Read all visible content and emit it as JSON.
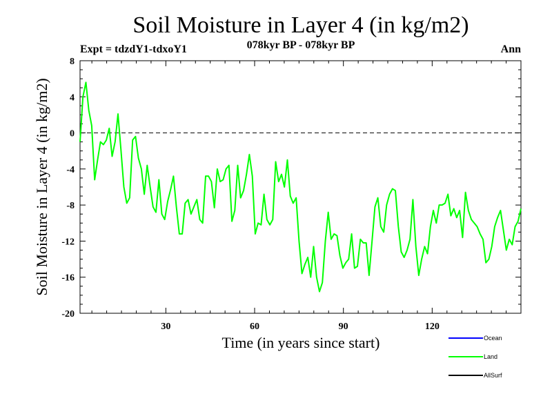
{
  "chart_data": {
    "type": "line",
    "title": "Soil Moisture in Layer 4 (in kg/m2)",
    "subtitle": "078kyr BP - 078kyr BP",
    "experiment": "Expt = tdzdY1-tdxoY1",
    "season": "Ann",
    "xlabel": "Time (in years since start)",
    "ylabel": "Soil Moisture in Layer 4 (in kg/m2)",
    "xlim": [
      1,
      150
    ],
    "ylim": [
      -20,
      8
    ],
    "xticks": [
      30,
      60,
      90,
      120
    ],
    "yticks": [
      8,
      4,
      0,
      -4,
      -8,
      -12,
      -16,
      -20
    ],
    "zero_line": 0,
    "legend": [
      {
        "label": "Ocean",
        "color": "#0000ff"
      },
      {
        "label": "Land",
        "color": "#00ff00"
      },
      {
        "label": "AllSurf",
        "color": "#000000"
      }
    ],
    "series": [
      {
        "name": "Land",
        "color": "#00ff00",
        "values": [
          -1.0,
          4.0,
          5.6,
          2.5,
          0.8,
          -5.2,
          -3.0,
          -1.0,
          -1.3,
          -0.8,
          0.5,
          -2.6,
          -1.0,
          2.1,
          -1.8,
          -6.0,
          -7.8,
          -7.2,
          -0.8,
          -0.4,
          -2.8,
          -4.0,
          -6.8,
          -3.6,
          -6.0,
          -8.2,
          -8.8,
          -5.2,
          -9.0,
          -9.6,
          -7.6,
          -6.3,
          -4.8,
          -8.2,
          -11.2,
          -11.2,
          -7.8,
          -7.4,
          -9.0,
          -8.2,
          -7.4,
          -9.6,
          -10.0,
          -4.8,
          -4.8,
          -5.4,
          -8.3,
          -4.0,
          -5.4,
          -5.2,
          -4.0,
          -3.6,
          -9.8,
          -8.6,
          -3.6,
          -7.2,
          -6.4,
          -4.6,
          -2.4,
          -4.8,
          -11.2,
          -10.0,
          -10.2,
          -6.8,
          -9.6,
          -10.2,
          -9.6,
          -3.2,
          -5.4,
          -4.6,
          -6.0,
          -3.0,
          -7.0,
          -7.8,
          -7.2,
          -12.0,
          -15.6,
          -14.6,
          -13.8,
          -16.0,
          -12.6,
          -16.0,
          -17.6,
          -16.6,
          -12.0,
          -8.8,
          -11.8,
          -11.2,
          -11.4,
          -13.6,
          -15.0,
          -14.4,
          -14.0,
          -11.2,
          -15.0,
          -14.8,
          -11.8,
          -12.2,
          -12.2,
          -15.8,
          -12.0,
          -8.2,
          -7.2,
          -10.4,
          -11.0,
          -8.0,
          -6.8,
          -6.2,
          -6.4,
          -10.4,
          -13.2,
          -13.8,
          -13.0,
          -11.8,
          -7.4,
          -12.6,
          -15.8,
          -14.0,
          -12.6,
          -13.4,
          -10.4,
          -8.6,
          -10.0,
          -8.0,
          -8.0,
          -7.8,
          -6.8,
          -9.2,
          -8.4,
          -9.4,
          -8.6,
          -11.6,
          -6.6,
          -8.6,
          -9.6,
          -10.0,
          -10.4,
          -11.2,
          -11.8,
          -14.4,
          -14.0,
          -12.6,
          -10.4,
          -9.4,
          -8.6,
          -10.8,
          -13.0,
          -11.8,
          -12.4,
          -10.4,
          -9.8,
          -8.4
        ]
      }
    ]
  }
}
